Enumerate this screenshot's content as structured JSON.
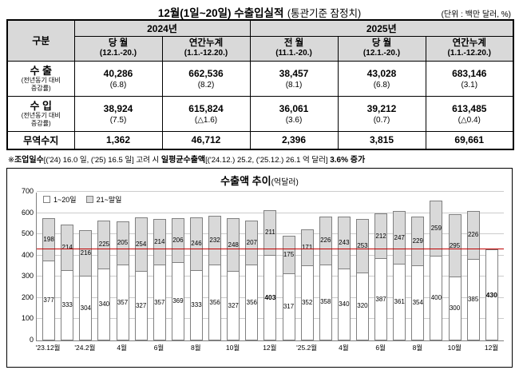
{
  "doc_title": {
    "main": "12월(1일~20일) 수출입실적",
    "sub": "(통관기준 잠정치)",
    "unit": "(단위 : 백만 달러, %)"
  },
  "table": {
    "corner_label": "구분",
    "year_headers": [
      {
        "label": "2024년"
      },
      {
        "label": "2025년"
      }
    ],
    "col_headers": [
      {
        "line1": "당 월",
        "line2": "(12.1.-20.)"
      },
      {
        "line1": "연간누계",
        "line2": "(1.1.-12.20.)"
      },
      {
        "line1": "전 월",
        "line2": "(11.1.-20.)"
      },
      {
        "line1": "당 월",
        "line2": "(12.1.-20.)"
      },
      {
        "line1": "연간누계",
        "line2": "(1.1.-12.20.)"
      }
    ],
    "rows": [
      {
        "label": "수 출",
        "sublabel1": "(전년동기 대비",
        "sublabel2": "증감률)",
        "values": [
          "40,286",
          "662,536",
          "38,457",
          "43,028",
          "683,146"
        ],
        "rates": [
          "(6.8)",
          "(8.2)",
          "(8.1)",
          "(6.8)",
          "(3.1)"
        ]
      },
      {
        "label": "수 입",
        "sublabel1": "(전년동기 대비",
        "sublabel2": "증감률)",
        "values": [
          "38,924",
          "615,824",
          "36,061",
          "39,212",
          "613,485"
        ],
        "rates": [
          "(7.5)",
          "(△1.6)",
          "(3.6)",
          "(0.7)",
          "(△0.4)"
        ]
      },
      {
        "label": "무역수지",
        "values": [
          "1,362",
          "46,712",
          "2,396",
          "3,815",
          "69,661"
        ]
      }
    ]
  },
  "footnote": {
    "mark": "※",
    "bold1": "조업일수",
    "text1": "[('24) 16.0 일, ('25) 16.5 일] 고려 시 ",
    "bold2": "일평균수출액",
    "text2": "[('24.12.) 25.2, ('25.12.) 26.1 억 달러] ",
    "bold3": "3.6% 증가"
  },
  "chart_data": {
    "type": "bar",
    "stacked": true,
    "title": "수출액 추이",
    "title_unit": "(억달러)",
    "ylim": [
      0,
      700
    ],
    "yticks": [
      0,
      100,
      200,
      300,
      400,
      500,
      600,
      700
    ],
    "grid": true,
    "legend_position": "top-left",
    "legend": [
      {
        "name": "1~20일",
        "color": "#ffffff"
      },
      {
        "name": "21~말일",
        "color": "#d9d9d9"
      }
    ],
    "reference_line": {
      "value": 430,
      "color": "#c00000"
    },
    "months": [
      "'23.12",
      "'24.1",
      "'24.2",
      "'24.3",
      "'24.4",
      "'24.5",
      "'24.6",
      "'24.7",
      "'24.8",
      "'24.9",
      "'24.10",
      "'24.11",
      "'24.12",
      "'25.1",
      "'25.2",
      "'25.3",
      "'25.4",
      "'25.5",
      "'25.6",
      "'25.7",
      "'25.8",
      "'25.9",
      "'25.10",
      "'25.11",
      "'25.12"
    ],
    "x_tick_labels": [
      "'23.12월",
      "",
      "'24.2월",
      "",
      "4월",
      "",
      "6월",
      "",
      "8월",
      "",
      "10월",
      "",
      "12월",
      "",
      "'25.2월",
      "",
      "4월",
      "",
      "6월",
      "",
      "8월",
      "",
      "10월",
      "",
      "12월"
    ],
    "series": [
      {
        "name": "1~20일",
        "values": [
          377,
          333,
          304,
          340,
          357,
          327,
          357,
          369,
          333,
          356,
          327,
          356,
          403,
          317,
          352,
          358,
          340,
          320,
          387,
          361,
          354,
          400,
          300,
          385,
          430
        ]
      },
      {
        "name": "21~말일",
        "values": [
          198,
          214,
          216,
          225,
          205,
          254,
          214,
          206,
          246,
          232,
          248,
          207,
          211,
          175,
          171,
          226,
          243,
          253,
          212,
          247,
          229,
          259,
          295,
          226,
          null
        ]
      }
    ],
    "bold_value_indices": [
      12,
      24
    ]
  }
}
